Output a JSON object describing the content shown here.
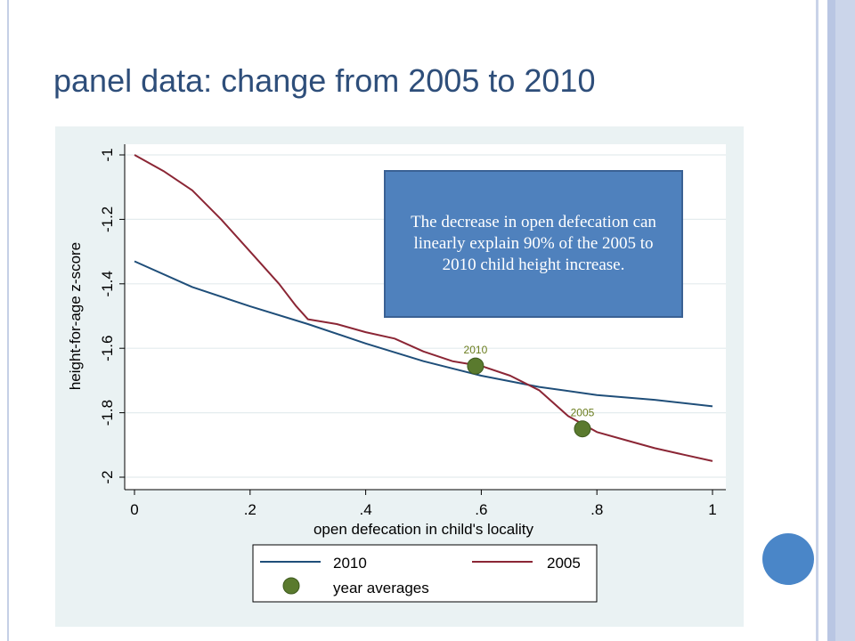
{
  "slide": {
    "title": "panel data: change from 2005 to 2010",
    "callout": "The  decrease in open defecation can linearly explain 90% of the 2005 to 2010 child height increase."
  },
  "colors": {
    "title": "#2e4e7a",
    "series_2010": "#1f4e79",
    "series_2005": "#8b2635",
    "year_average_marker": "#5a7a2e",
    "callout_bg": "#4f81bd",
    "panel_bg": "#eaf2f3",
    "accent_dot": "#4a86c8"
  },
  "chart_data": {
    "type": "line",
    "title": "",
    "xlabel": "open defecation in child's locality",
    "ylabel": "height-for-age z-score",
    "xlim": [
      0,
      1
    ],
    "ylim": [
      -2,
      -1
    ],
    "xticks": [
      0,
      0.2,
      0.4,
      0.6,
      0.8,
      1
    ],
    "xtick_labels": [
      "0",
      ".2",
      ".4",
      ".6",
      ".8",
      "1"
    ],
    "yticks": [
      -2,
      -1.8,
      -1.6,
      -1.4,
      -1.2,
      -1
    ],
    "ytick_labels": [
      "-2",
      "-1.8",
      "-1.6",
      "-1.4",
      "-1.2",
      "-1"
    ],
    "grid": "horizontal",
    "legend_position": "bottom",
    "series": [
      {
        "name": "2010",
        "x": [
          0,
          0.1,
          0.2,
          0.3,
          0.4,
          0.5,
          0.6,
          0.7,
          0.8,
          0.9,
          1.0
        ],
        "y": [
          -1.33,
          -1.41,
          -1.47,
          -1.525,
          -1.585,
          -1.64,
          -1.685,
          -1.72,
          -1.745,
          -1.76,
          -1.78
        ]
      },
      {
        "name": "2005",
        "x": [
          0,
          0.05,
          0.1,
          0.15,
          0.2,
          0.25,
          0.28,
          0.3,
          0.35,
          0.4,
          0.45,
          0.5,
          0.55,
          0.6,
          0.65,
          0.7,
          0.75,
          0.8,
          0.85,
          0.9,
          0.95,
          1.0
        ],
        "y": [
          -1.0,
          -1.05,
          -1.11,
          -1.2,
          -1.3,
          -1.4,
          -1.47,
          -1.51,
          -1.525,
          -1.55,
          -1.57,
          -1.61,
          -1.64,
          -1.655,
          -1.685,
          -1.73,
          -1.81,
          -1.86,
          -1.885,
          -1.91,
          -1.93,
          -1.95
        ]
      }
    ],
    "year_averages": [
      {
        "label": "2010",
        "x": 0.59,
        "y": -1.655
      },
      {
        "label": "2005",
        "x": 0.775,
        "y": -1.85
      }
    ],
    "legend": [
      {
        "label": "2010",
        "kind": "line",
        "series": "2010"
      },
      {
        "label": "2005",
        "kind": "line",
        "series": "2005"
      },
      {
        "label": "year averages",
        "kind": "marker"
      }
    ]
  }
}
